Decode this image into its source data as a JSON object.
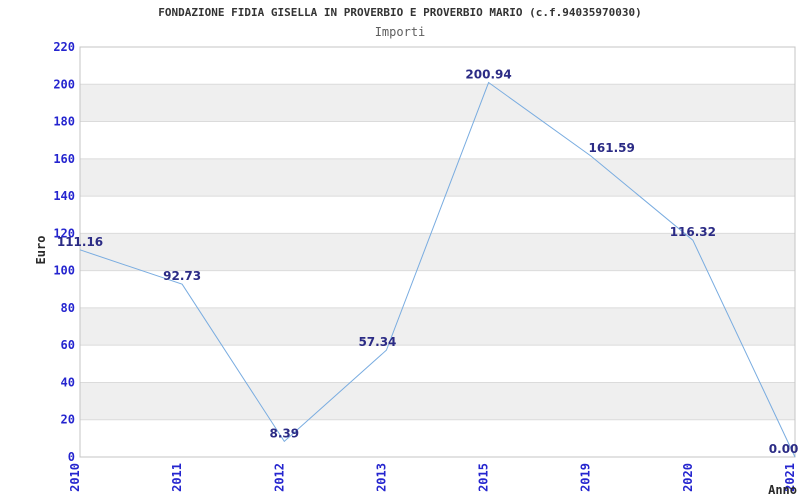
{
  "chart_data": {
    "type": "line",
    "title": "FONDAZIONE FIDIA GISELLA IN PROVERBIO E PROVERBIO MARIO (c.f.94035970030)",
    "subtitle": "Importi",
    "categories": [
      "2010",
      "2011",
      "2012",
      "2013",
      "2015",
      "2019",
      "2020",
      "2021"
    ],
    "series": [
      {
        "name": "Importi",
        "values": [
          111.16,
          92.73,
          8.39,
          57.34,
          200.94,
          161.59,
          116.32,
          0.0
        ]
      }
    ],
    "value_labels": [
      "111.16",
      "92.73",
      "8.39",
      "57.34",
      "200.94",
      "161.59",
      "116.32",
      "0.00"
    ],
    "xlabel": "Anno",
    "ylabel": "Euro",
    "ylim": [
      0,
      220
    ],
    "ytick_step": 20,
    "legend": "none",
    "grid": "horizontal-alternating-bands",
    "label_offsets_x": [
      0,
      0,
      0,
      -9,
      0,
      21,
      0,
      0
    ],
    "colors": {
      "line": "#79ACE0",
      "tick_label": "#2525CF",
      "point_label": "#2B2B85",
      "band": "#EFEFEF",
      "grid": "#DBDBDB",
      "plot_border": "#C4C4C4",
      "title": "#333333",
      "subtitle": "#5E5E5E",
      "axis_title": "#2A2A2A",
      "background": "#FFFFFF"
    }
  }
}
